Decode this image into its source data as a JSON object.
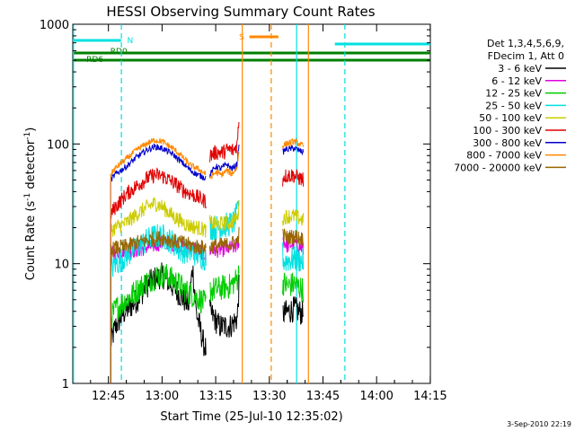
{
  "chart_data": {
    "type": "line",
    "title": "HESSI Observing Summary Count Rates",
    "xlabel": "Start Time (25-Jul-10 12:35:02)",
    "ylabel_main": "Count Rate (s",
    "ylabel_sup1": "-1",
    "ylabel_mid": " detector",
    "ylabel_sup2": "-1",
    "ylabel_end": ")",
    "yscale": "log",
    "ylim": [
      1,
      1000
    ],
    "xlim_minutes": [
      0,
      100
    ],
    "x_ticks": [
      {
        "label": "12:45",
        "m": 9.97
      },
      {
        "label": "13:00",
        "m": 24.97
      },
      {
        "label": "13:15",
        "m": 39.97
      },
      {
        "label": "13:30",
        "m": 54.97
      },
      {
        "label": "13:45",
        "m": 69.97
      },
      {
        "label": "14:00",
        "m": 84.97
      },
      {
        "label": "14:15",
        "m": 99.97
      }
    ],
    "y_ticks": [
      {
        "label": "1",
        "v": 1
      },
      {
        "label": "10",
        "v": 10
      },
      {
        "label": "100",
        "v": 100
      },
      {
        "label": "1000",
        "v": 1000
      }
    ],
    "legend_header": [
      "Det 1,3,4,5,6,9,",
      "FDecim 1, Att 0"
    ],
    "legend_position": "right",
    "data_segments_minutes": [
      [
        10.6,
        46.5
      ],
      [
        58.7,
        64.5
      ]
    ],
    "gap_fill_minutes": [
      37.3,
      38.3
    ],
    "series": [
      {
        "name": "3 - 6 keV",
        "color": "#000000",
        "points": [
          [
            10.6,
            2.2
          ],
          [
            12,
            3.0
          ],
          [
            14,
            3.8
          ],
          [
            18,
            5
          ],
          [
            20.5,
            6.5
          ],
          [
            23,
            7.5
          ],
          [
            25,
            8
          ],
          [
            27,
            7
          ],
          [
            30,
            5.5
          ],
          [
            32.5,
            4.5
          ],
          [
            33.5,
            9.5
          ],
          [
            34.5,
            4
          ],
          [
            36.5,
            2.2
          ],
          [
            37.3,
            1.9
          ],
          [
            38.3,
            4.0
          ],
          [
            41,
            3.0
          ],
          [
            44,
            3.0
          ],
          [
            46,
            3.5
          ],
          [
            46.5,
            6.5
          ],
          [
            58.7,
            3.8
          ],
          [
            62,
            4.2
          ],
          [
            64.5,
            3.8
          ]
        ]
      },
      {
        "name": "6 - 12 keV",
        "color": "#e000e0",
        "points": [
          [
            10.6,
            12
          ],
          [
            12,
            12.5
          ],
          [
            15,
            13
          ],
          [
            18,
            13
          ],
          [
            22,
            14
          ],
          [
            25,
            15
          ],
          [
            28,
            14.5
          ],
          [
            31,
            14
          ],
          [
            34,
            13.5
          ],
          [
            37,
            12
          ],
          [
            37.3,
            11
          ],
          [
            38.3,
            13
          ],
          [
            41,
            13
          ],
          [
            44,
            13.5
          ],
          [
            46,
            14
          ],
          [
            46.5,
            16
          ],
          [
            58.7,
            16
          ],
          [
            60,
            14
          ],
          [
            62,
            15
          ],
          [
            64.5,
            13
          ]
        ]
      },
      {
        "name": "12 - 25 keV",
        "color": "#00cc00",
        "points": [
          [
            10.6,
            3.5
          ],
          [
            12,
            4.2
          ],
          [
            15,
            5
          ],
          [
            18,
            6
          ],
          [
            21,
            7.2
          ],
          [
            24,
            8
          ],
          [
            26,
            8
          ],
          [
            29,
            7
          ],
          [
            32,
            5.8
          ],
          [
            35,
            5.2
          ],
          [
            37.3,
            4.5
          ],
          [
            38.3,
            6.0
          ],
          [
            41,
            6.2
          ],
          [
            44,
            6.5
          ],
          [
            46,
            7.5
          ],
          [
            46.5,
            8.5
          ],
          [
            58.7,
            7.0
          ],
          [
            60,
            6.5
          ],
          [
            62,
            6.8
          ],
          [
            64.5,
            6.0
          ]
        ]
      },
      {
        "name": "25 - 50 keV",
        "color": "#00e0e0",
        "points": [
          [
            10.6,
            9.0
          ],
          [
            12,
            10
          ],
          [
            14,
            11
          ],
          [
            17,
            13
          ],
          [
            20,
            15
          ],
          [
            22,
            16.5
          ],
          [
            24,
            17
          ],
          [
            26,
            16.5
          ],
          [
            28,
            15
          ],
          [
            30,
            13
          ],
          [
            33,
            12.5
          ],
          [
            35,
            12
          ],
          [
            37.3,
            11
          ],
          [
            38.3,
            20
          ],
          [
            41,
            20
          ],
          [
            43,
            21
          ],
          [
            45,
            22
          ],
          [
            46,
            26
          ],
          [
            46.5,
            36
          ],
          [
            58.7,
            12
          ],
          [
            59,
            10.5
          ],
          [
            62,
            11
          ],
          [
            64.5,
            10.5
          ]
        ]
      },
      {
        "name": "50 - 100 keV",
        "color": "#cccc00",
        "points": [
          [
            10.6,
            19
          ],
          [
            12,
            20
          ],
          [
            15,
            22
          ],
          [
            18,
            26
          ],
          [
            21,
            30
          ],
          [
            23,
            32
          ],
          [
            25,
            30
          ],
          [
            28,
            25
          ],
          [
            32,
            21
          ],
          [
            35,
            20
          ],
          [
            37.3,
            19
          ],
          [
            38.3,
            22
          ],
          [
            41,
            21.5
          ],
          [
            44,
            22
          ],
          [
            46,
            24
          ],
          [
            46.5,
            30
          ],
          [
            58.7,
            24
          ],
          [
            60,
            25
          ],
          [
            62,
            25
          ],
          [
            64.5,
            23
          ]
        ]
      },
      {
        "name": "100 - 300 keV",
        "color": "#e00000",
        "points": [
          [
            10.6,
            26
          ],
          [
            12,
            30
          ],
          [
            15,
            38
          ],
          [
            18,
            45
          ],
          [
            21,
            52
          ],
          [
            23,
            55
          ],
          [
            25,
            54
          ],
          [
            28,
            48
          ],
          [
            31,
            41
          ],
          [
            34,
            37
          ],
          [
            37.3,
            33
          ],
          [
            38.3,
            80
          ],
          [
            40,
            85
          ],
          [
            42,
            85
          ],
          [
            43.5,
            90
          ],
          [
            45,
            88
          ],
          [
            46,
            100
          ],
          [
            46.5,
            165
          ],
          [
            58.7,
            50
          ],
          [
            59,
            54
          ],
          [
            61.5,
            55
          ],
          [
            64.5,
            50
          ]
        ]
      },
      {
        "name": "300 - 800 keV",
        "color": "#0000cc",
        "points": [
          [
            10.6,
            50
          ],
          [
            12,
            56
          ],
          [
            15,
            65
          ],
          [
            18,
            78
          ],
          [
            21,
            90
          ],
          [
            23,
            95
          ],
          [
            25,
            92
          ],
          [
            28,
            82
          ],
          [
            31,
            68
          ],
          [
            33,
            60
          ],
          [
            35,
            55
          ],
          [
            37.3,
            52
          ],
          [
            38.3,
            55
          ],
          [
            40,
            65
          ],
          [
            41.5,
            62
          ],
          [
            43,
            68
          ],
          [
            44.5,
            62
          ],
          [
            46,
            68
          ],
          [
            46.5,
            105
          ],
          [
            58.7,
            85
          ],
          [
            59.5,
            90
          ],
          [
            62,
            92
          ],
          [
            64.5,
            85
          ]
        ]
      },
      {
        "name": "800 - 7000 keV",
        "color": "#ff8800",
        "points": [
          [
            10.6,
            56
          ],
          [
            12,
            63
          ],
          [
            15,
            75
          ],
          [
            18,
            90
          ],
          [
            21,
            102
          ],
          [
            23,
            108
          ],
          [
            25,
            105
          ],
          [
            28,
            92
          ],
          [
            31,
            76
          ],
          [
            33,
            66
          ],
          [
            35,
            62
          ],
          [
            37.3,
            56
          ],
          [
            38.3,
            52
          ],
          [
            40,
            58
          ],
          [
            41.5,
            55
          ],
          [
            43,
            60
          ],
          [
            44.5,
            56
          ],
          [
            46,
            64
          ],
          [
            46.5,
            90
          ],
          [
            58.7,
            96
          ],
          [
            59.5,
            100
          ],
          [
            62,
            105
          ],
          [
            64.5,
            96
          ]
        ]
      },
      {
        "name": "7000 - 20000 keV",
        "color": "#996600",
        "points": [
          [
            10.6,
            13
          ],
          [
            12,
            13.5
          ],
          [
            15,
            14
          ],
          [
            18,
            15
          ],
          [
            22,
            16
          ],
          [
            25,
            16.5
          ],
          [
            28,
            15.5
          ],
          [
            31,
            14.8
          ],
          [
            34,
            14
          ],
          [
            37.3,
            13.5
          ],
          [
            38.3,
            14
          ],
          [
            41,
            14.2
          ],
          [
            44,
            14.5
          ],
          [
            46,
            15.5
          ],
          [
            46.5,
            18
          ],
          [
            58.7,
            17.5
          ],
          [
            60,
            16.5
          ],
          [
            62,
            17
          ],
          [
            64.5,
            16
          ]
        ]
      }
    ],
    "flag_bars": [
      {
        "label": "N",
        "color": "#00e0e0",
        "y": 45,
        "segments": [
          [
            0,
            13.5
          ]
        ],
        "label_m": 15.2,
        "label_y": 48
      },
      {
        "label": "",
        "color": "#00e0e0",
        "y": 49,
        "segments": [
          [
            73.3,
            100
          ]
        ]
      },
      {
        "label": "RD0",
        "color": "#008000",
        "y": 59,
        "segments": [
          [
            0,
            100
          ]
        ],
        "label_m": 10.5,
        "label_y": 60
      },
      {
        "label": "",
        "color": "#008000",
        "y": 67,
        "segments": [
          [
            0,
            100
          ]
        ]
      },
      {
        "label": "S",
        "color": "#ff8800",
        "y": 41,
        "segments": [
          [
            49.4,
            57.5
          ]
        ],
        "label_m": 46.5,
        "label_y": 44
      }
    ],
    "rd6_label": {
      "label": "RD6",
      "m": 3.8,
      "y": 69
    },
    "vlines": [
      {
        "m": 0.2,
        "color": "#00e0e0",
        "dash": false
      },
      {
        "m": 13.6,
        "color": "#00e0e0",
        "dash": true
      },
      {
        "m": 47.4,
        "color": "#ff8800",
        "dash": false
      },
      {
        "m": 55.5,
        "color": "#ff8800",
        "dash": true
      },
      {
        "m": 62.6,
        "color": "#00e0e0",
        "dash": false
      },
      {
        "m": 65.9,
        "color": "#ff8800",
        "dash": false
      },
      {
        "m": 76.1,
        "color": "#00e0e0",
        "dash": true
      }
    ]
  },
  "footer": {
    "timestamp": "3-Sep-2010 22:19"
  }
}
